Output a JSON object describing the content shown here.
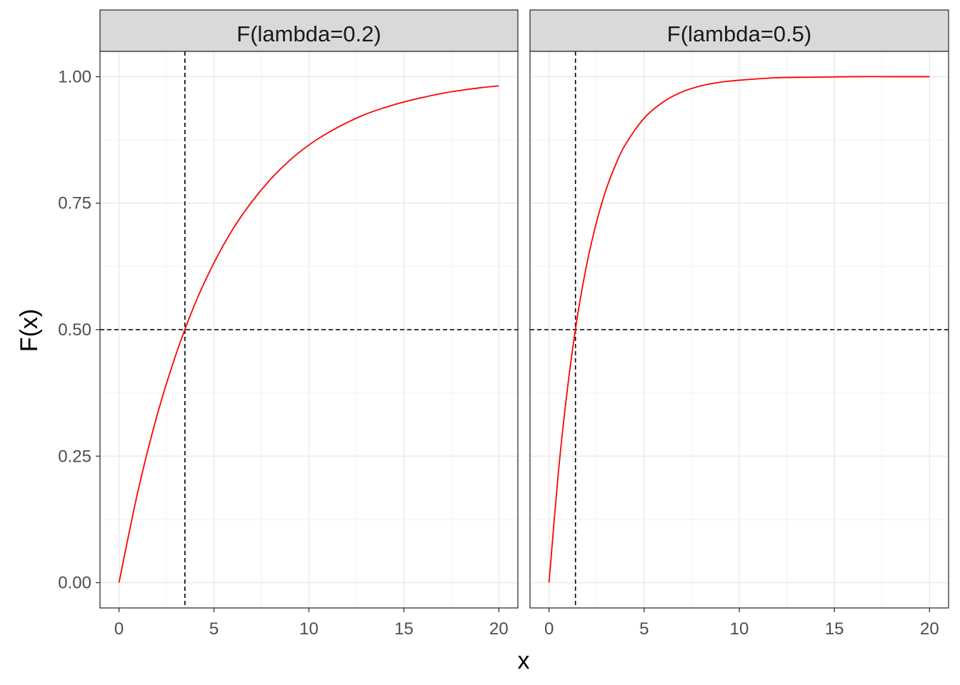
{
  "chart_data": {
    "type": "line",
    "xlabel": "x",
    "ylabel": "F(x)",
    "xlim": [
      -1,
      21
    ],
    "ylim": [
      -0.05,
      1.05
    ],
    "x_ticks": [
      0,
      5,
      10,
      15,
      20
    ],
    "x_tick_labels": [
      "0",
      "5",
      "10",
      "15",
      "20"
    ],
    "y_ticks": [
      0,
      0.25,
      0.5,
      0.75,
      1.0
    ],
    "y_tick_labels": [
      "0.00",
      "0.25",
      "0.50",
      "0.75",
      "1.00"
    ],
    "grid": true,
    "legend": "none",
    "line_color": "#ff0000",
    "reference_line_color": "#000000",
    "panels": [
      {
        "strip_label": "F(lambda=0.2)",
        "lambda": 0.2,
        "x": [
          0,
          1,
          2,
          3,
          4,
          5,
          6,
          7,
          8,
          9,
          10,
          11,
          12,
          13,
          14,
          15,
          16,
          17,
          18,
          19,
          20
        ],
        "y": [
          0.0,
          0.181,
          0.33,
          0.451,
          0.551,
          0.632,
          0.699,
          0.753,
          0.798,
          0.835,
          0.865,
          0.889,
          0.909,
          0.926,
          0.939,
          0.95,
          0.959,
          0.967,
          0.973,
          0.978,
          0.982
        ],
        "hline_y": 0.5,
        "vline_x": 3.47
      },
      {
        "strip_label": "F(lambda=0.5)",
        "lambda": 0.5,
        "x": [
          0,
          0.5,
          1,
          1.5,
          2,
          2.5,
          3,
          3.5,
          4,
          5,
          6,
          7,
          8,
          9,
          10,
          12,
          14,
          16,
          18,
          20
        ],
        "y": [
          0.0,
          0.221,
          0.393,
          0.528,
          0.632,
          0.713,
          0.777,
          0.826,
          0.865,
          0.918,
          0.95,
          0.97,
          0.982,
          0.989,
          0.993,
          0.998,
          0.999,
          1.0,
          1.0,
          1.0
        ],
        "hline_y": 0.5,
        "vline_x": 1.39
      }
    ]
  }
}
